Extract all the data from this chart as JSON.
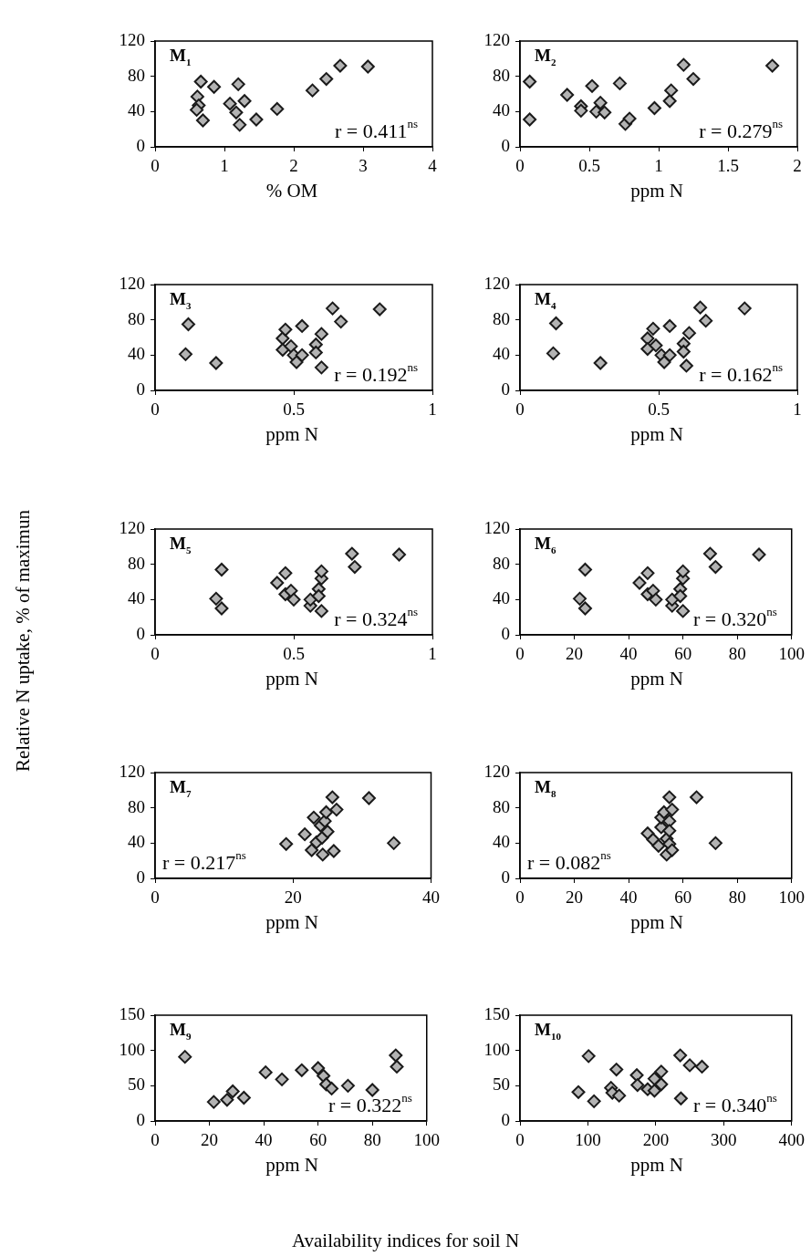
{
  "chart_data": [
    {
      "type": "scatter",
      "title": "M$_{1}$",
      "xlabel": "% OM",
      "annotations": [
        "r = 0.411$^{ns}$"
      ],
      "marker": "diamond",
      "color": "#b3b3b3",
      "x": [
        0.66,
        0.61,
        0.63,
        0.6,
        0.69,
        0.85,
        1.2,
        1.08,
        1.17,
        1.29,
        1.22,
        1.46,
        1.76,
        2.27,
        2.47,
        2.67,
        3.07
      ],
      "values": [
        74,
        57,
        47,
        42,
        30,
        68,
        71,
        49,
        39,
        52,
        25,
        31,
        43,
        64,
        77,
        92,
        91
      ],
      "xlim": [
        0,
        4
      ],
      "xticks": [
        0,
        1,
        2,
        3,
        4
      ],
      "ylim": [
        0,
        120
      ],
      "yticks": [
        0,
        40,
        80,
        120
      ]
    },
    {
      "type": "scatter",
      "title": "M$_{2}$",
      "xlabel": "ppm N",
      "annotations": [
        "r = 0.279$^{ns}$"
      ],
      "marker": "diamond",
      "color": "#b3b3b3",
      "x": [
        0.07,
        0.07,
        0.34,
        0.44,
        0.44,
        0.52,
        0.55,
        0.58,
        0.61,
        0.72,
        0.76,
        0.79,
        0.97,
        1.08,
        1.09,
        1.18,
        1.25,
        1.82
      ],
      "values": [
        74,
        31,
        59,
        46,
        41,
        69,
        40,
        50,
        39,
        72,
        26,
        32,
        44,
        52,
        64,
        93,
        77,
        92
      ],
      "xlim": [
        0,
        2
      ],
      "xticks": [
        0,
        0.5,
        1,
        1.5,
        2
      ],
      "ylim": [
        0,
        120
      ],
      "yticks": [
        0,
        40,
        80,
        120
      ]
    },
    {
      "type": "scatter",
      "title": "M$_{3}$",
      "xlabel": "ppm N",
      "annotations": [
        "r = 0.192$^{ns}$"
      ],
      "marker": "diamond",
      "color": "#b3b3b3",
      "x": [
        0.12,
        0.11,
        0.22,
        0.46,
        0.47,
        0.46,
        0.49,
        0.5,
        0.51,
        0.53,
        0.53,
        0.58,
        0.58,
        0.6,
        0.6,
        0.64,
        0.67,
        0.81
      ],
      "values": [
        75,
        41,
        31,
        59,
        69,
        46,
        50,
        40,
        32,
        40,
        73,
        52,
        43,
        64,
        26,
        93,
        78,
        92
      ],
      "xlim": [
        0,
        1
      ],
      "xticks": [
        0,
        0.5,
        1
      ],
      "ylim": [
        0,
        120
      ],
      "yticks": [
        0,
        40,
        80,
        120
      ]
    },
    {
      "type": "scatter",
      "title": "M$_{4}$",
      "xlabel": "ppm N",
      "annotations": [
        "r = 0.162$^{ns}$"
      ],
      "marker": "diamond",
      "color": "#b3b3b3",
      "x": [
        0.13,
        0.12,
        0.29,
        0.46,
        0.48,
        0.46,
        0.49,
        0.51,
        0.52,
        0.54,
        0.54,
        0.59,
        0.59,
        0.61,
        0.6,
        0.65,
        0.67,
        0.81
      ],
      "values": [
        76,
        42,
        31,
        59,
        70,
        47,
        51,
        40,
        32,
        40,
        73,
        53,
        44,
        65,
        28,
        94,
        79,
        93
      ],
      "xlim": [
        0,
        1
      ],
      "xticks": [
        0,
        0.5,
        1
      ],
      "ylim": [
        0,
        120
      ],
      "yticks": [
        0,
        40,
        80,
        120
      ]
    },
    {
      "type": "scatter",
      "title": "M$_{5}$",
      "xlabel": "ppm N",
      "annotations": [
        "r = 0.324$^{ns}$"
      ],
      "marker": "diamond",
      "color": "#b3b3b3",
      "x": [
        0.24,
        0.22,
        0.24,
        0.44,
        0.47,
        0.47,
        0.49,
        0.5,
        0.56,
        0.56,
        0.59,
        0.59,
        0.6,
        0.6,
        0.6,
        0.71,
        0.72,
        0.88
      ],
      "values": [
        74,
        41,
        30,
        59,
        70,
        46,
        50,
        40,
        33,
        40,
        52,
        44,
        64,
        72,
        27,
        92,
        77,
        91
      ],
      "xlim": [
        0,
        1
      ],
      "xticks": [
        0,
        0.5,
        1
      ],
      "ylim": [
        0,
        120
      ],
      "yticks": [
        0,
        40,
        80,
        120
      ]
    },
    {
      "type": "scatter",
      "title": "M$_{6}$",
      "xlabel": "ppm N",
      "annotations": [
        "r = 0.320$^{ns}$"
      ],
      "marker": "diamond",
      "color": "#b3b3b3",
      "x": [
        24,
        22,
        24,
        44,
        47,
        47,
        49,
        50,
        56,
        56,
        59,
        59,
        60,
        60,
        60,
        70,
        72,
        88
      ],
      "values": [
        74,
        41,
        30,
        59,
        70,
        46,
        50,
        40,
        33,
        40,
        52,
        44,
        64,
        72,
        27,
        92,
        77,
        91
      ],
      "xlim": [
        0,
        100
      ],
      "xticks": [
        0,
        20,
        40,
        60,
        80,
        100
      ],
      "ylim": [
        0,
        120
      ],
      "yticks": [
        0,
        40,
        80,
        120
      ]
    },
    {
      "type": "scatter",
      "title": "M$_{7}$",
      "xlabel": "ppm N",
      "annotations": [
        "r = 0.217$^{ns}$"
      ],
      "marker": "diamond",
      "color": "#b3b3b3",
      "x": [
        19,
        21.7,
        23,
        22.7,
        23.4,
        24.2,
        24.3,
        24,
        24.6,
        24.8,
        25,
        25.7,
        25.9,
        26.3,
        31,
        34.6
      ],
      "values": [
        39,
        50,
        69,
        32,
        41,
        46,
        27,
        60,
        65,
        75,
        53,
        92,
        31,
        78,
        91,
        40
      ],
      "xlim": [
        0,
        40
      ],
      "xticks": [
        0,
        20,
        40
      ],
      "ylim": [
        0,
        120
      ],
      "yticks": [
        0,
        40,
        80,
        120
      ]
    },
    {
      "type": "scatter",
      "title": "M$_{8}$",
      "xlabel": "ppm N",
      "annotations": [
        "r = 0.082$^{ns}$"
      ],
      "marker": "diamond",
      "color": "#b3b3b3",
      "x": [
        47,
        49,
        51,
        52,
        52,
        53,
        54,
        54,
        55,
        55,
        55,
        55,
        56,
        56,
        65,
        72
      ],
      "values": [
        51,
        44,
        37,
        58,
        69,
        75,
        45,
        27,
        92,
        65,
        54,
        39,
        78,
        32,
        92,
        40
      ],
      "xlim": [
        0,
        100
      ],
      "xticks": [
        0,
        20,
        40,
        60,
        80,
        100
      ],
      "ylim": [
        0,
        120
      ],
      "yticks": [
        0,
        40,
        80,
        120
      ]
    },
    {
      "type": "scatter",
      "title": "M$_{9}$",
      "xlabel": "ppm N",
      "annotations": [
        "r = 0.322$^{ns}$"
      ],
      "marker": "diamond",
      "color": "#b3b3b3",
      "x": [
        11,
        21.6,
        26.5,
        28.6,
        32.7,
        40.7,
        46.7,
        54,
        60,
        62,
        63,
        65,
        71,
        80,
        88.6,
        89
      ],
      "values": [
        91,
        27,
        30,
        42,
        33,
        69,
        59,
        72,
        75,
        64,
        52,
        46,
        50,
        44,
        93,
        77
      ],
      "xlim": [
        0,
        100
      ],
      "xticks": [
        0,
        20,
        40,
        60,
        80,
        100
      ],
      "ylim": [
        0,
        150
      ],
      "yticks": [
        0,
        50,
        100,
        150
      ]
    },
    {
      "type": "scatter",
      "title": "M$_{10}$",
      "xlabel": "ppm N",
      "annotations": [
        "r = 0.340$^{ns}$"
      ],
      "marker": "diamond",
      "color": "#b3b3b3",
      "x": [
        86,
        101,
        109,
        134,
        136,
        146,
        142,
        172,
        173,
        188,
        198,
        198,
        208,
        208,
        236,
        237,
        250,
        268
      ],
      "values": [
        41,
        92,
        28,
        47,
        40,
        36,
        73,
        65,
        51,
        45,
        43,
        60,
        70,
        52,
        93,
        32,
        79,
        77
      ],
      "xlim": [
        0,
        400
      ],
      "xticks": [
        0,
        100,
        200,
        300,
        400
      ],
      "ylim": [
        0,
        150
      ],
      "yticks": [
        0,
        50,
        100,
        150
      ]
    },
    {
      "type": "other",
      "ylabel": "Relative N uptake, % of maximun",
      "xlabel": "Availability indices for soil N"
    }
  ]
}
